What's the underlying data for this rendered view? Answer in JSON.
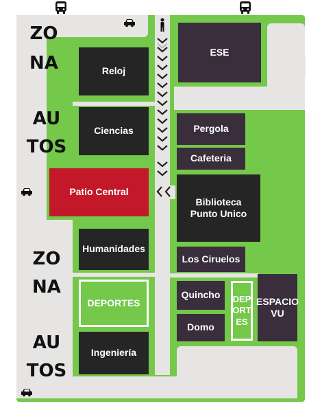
{
  "map": {
    "zone_labels": [
      "ZO",
      "NA",
      "AU",
      "TOS",
      "ZO",
      "NA",
      "AU",
      "TOS"
    ],
    "buildings": {
      "reloj": "Reloj",
      "ciencias": "Ciencias",
      "patio_central": "Patio Central",
      "humanidades": "Humanidades",
      "deportes_left": "DEPORTES",
      "ingenieria": "Ingeniería",
      "ese": "ESE",
      "pergola": "Pergola",
      "cafeteria": "Cafeteria",
      "biblioteca": "Biblioteca\nPunto Unico",
      "los_ciruelos": "Los Ciruelos",
      "quincho": "Quincho",
      "domo": "Domo",
      "deportes_right": "DEP\nORT\nES",
      "espacio_vu": "ESPACIO\nVU"
    },
    "icons": [
      "bus-icon",
      "car-icon",
      "pedestrian-icon",
      "chevron-down-icon",
      "chevron-left-icon"
    ],
    "colors": {
      "grass": "#74c84a",
      "road": "#e7e5e3",
      "dark_building": "#252525",
      "purple_building": "#3a2e3d",
      "highlight": "#c3182a"
    }
  }
}
